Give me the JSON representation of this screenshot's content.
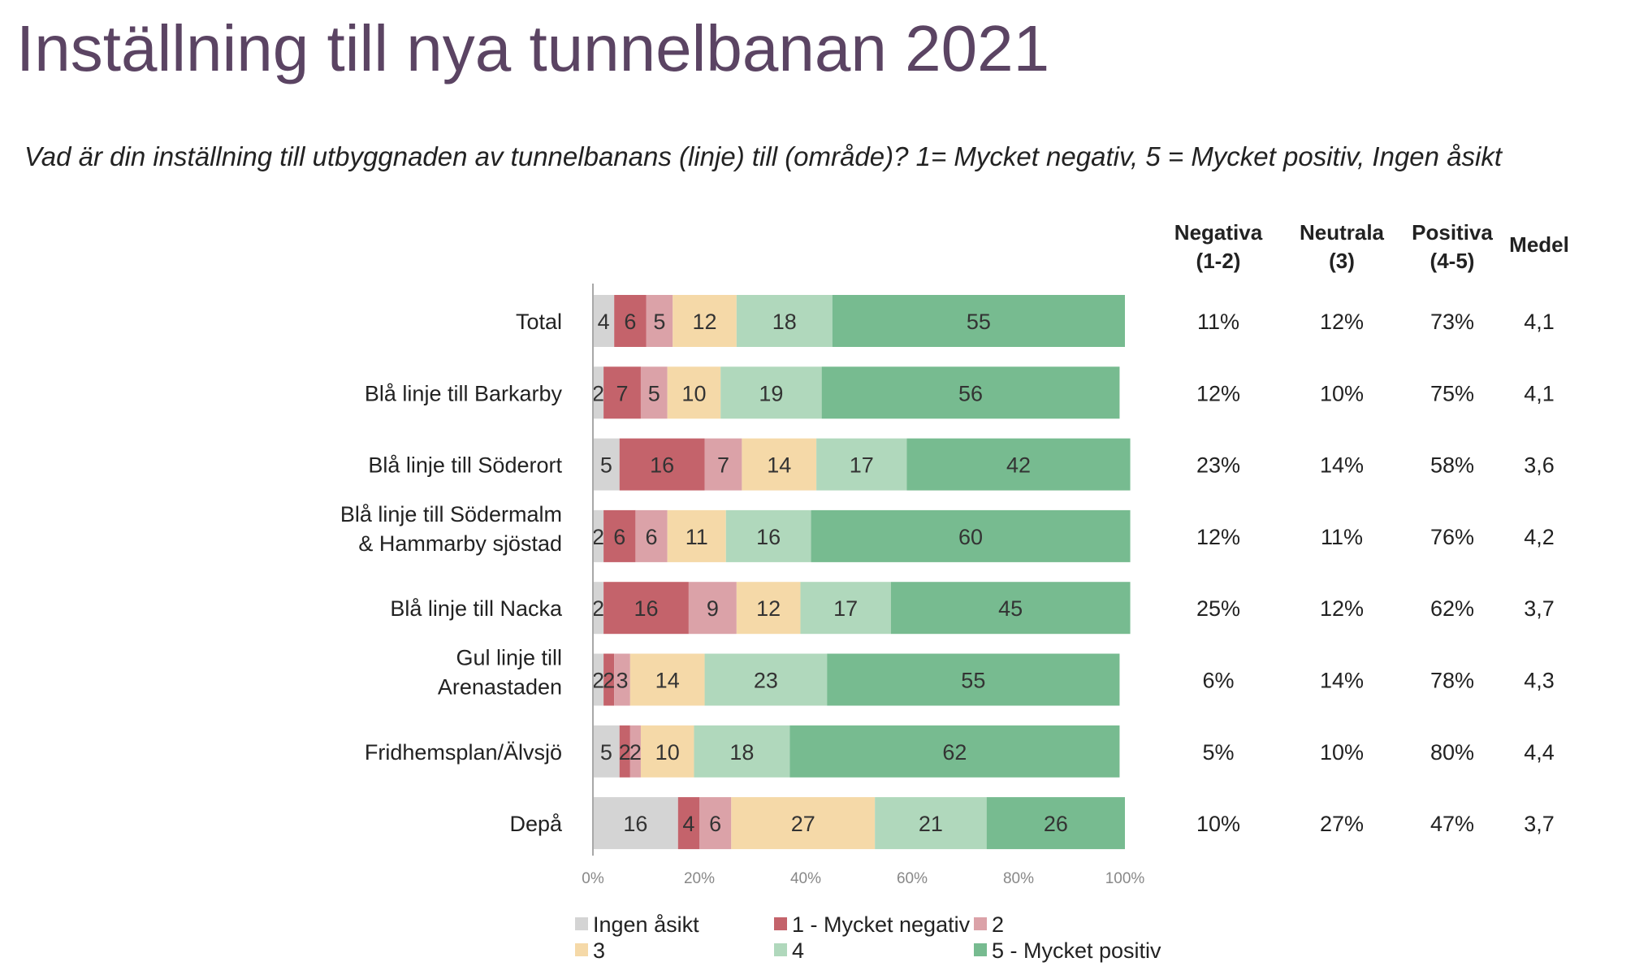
{
  "title": "Inställning till nya tunnelbanan 2021",
  "subtitle": "Vad är din inställning till utbyggnaden av tunnelbanans (linje) till (område)? 1= Mycket negativ, 5 = Mycket positiv, Ingen åsikt",
  "colors": {
    "Ingen åsikt": "#d4d4d4",
    "1 - Mycket negativ": "#c4636b",
    "2": "#dba2a8",
    "3": "#f5d9a8",
    "4": "#b0d8bc",
    "5 - Mycket positiv": "#77bb90"
  },
  "chart_data": {
    "type": "bar",
    "orientation": "horizontal",
    "stacked": true,
    "percent_scale": true,
    "xlim": [
      0,
      100
    ],
    "x_ticks": [
      "0%",
      "20%",
      "40%",
      "60%",
      "80%",
      "100%"
    ],
    "categories": [
      [
        "Total"
      ],
      [
        "Blå linje till Barkarby"
      ],
      [
        "Blå linje till Söderort"
      ],
      [
        "Blå linje till Södermalm",
        "& Hammarby sjöstad"
      ],
      [
        "Blå linje till Nacka"
      ],
      [
        "Gul linje till",
        "Arenastaden"
      ],
      [
        "Fridhemsplan/Älvsjö"
      ],
      [
        "Depå"
      ]
    ],
    "series": [
      {
        "name": "Ingen åsikt",
        "values": [
          4,
          2,
          5,
          2,
          2,
          2,
          5,
          16
        ]
      },
      {
        "name": "1 - Mycket negativ",
        "values": [
          6,
          7,
          16,
          6,
          16,
          2,
          2,
          4
        ]
      },
      {
        "name": "2",
        "values": [
          5,
          5,
          7,
          6,
          9,
          3,
          2,
          6
        ]
      },
      {
        "name": "3",
        "values": [
          12,
          10,
          14,
          11,
          12,
          14,
          10,
          27
        ]
      },
      {
        "name": "4",
        "values": [
          18,
          19,
          17,
          16,
          17,
          23,
          18,
          21
        ]
      },
      {
        "name": "5 - Mycket positiv",
        "values": [
          55,
          56,
          42,
          60,
          45,
          55,
          62,
          26
        ]
      }
    ],
    "legend": {
      "position": "bottom",
      "rows": [
        [
          "Ingen åsikt",
          "1 - Mycket negativ",
          "2"
        ],
        [
          "3",
          "4",
          "5 - Mycket positiv"
        ]
      ]
    },
    "table": {
      "columns": [
        [
          "Negativa",
          "(1-2)"
        ],
        [
          "Neutrala",
          "(3)"
        ],
        [
          "Positiva",
          "(4-5)"
        ],
        [
          "Medel"
        ]
      ],
      "rows": [
        [
          "11%",
          "12%",
          "73%",
          "4,1"
        ],
        [
          "12%",
          "10%",
          "75%",
          "4,1"
        ],
        [
          "23%",
          "14%",
          "58%",
          "3,6"
        ],
        [
          "12%",
          "11%",
          "76%",
          "4,2"
        ],
        [
          "25%",
          "12%",
          "62%",
          "3,7"
        ],
        [
          "6%",
          "14%",
          "78%",
          "4,3"
        ],
        [
          "5%",
          "10%",
          "80%",
          "4,4"
        ],
        [
          "10%",
          "27%",
          "47%",
          "3,7"
        ]
      ]
    }
  }
}
